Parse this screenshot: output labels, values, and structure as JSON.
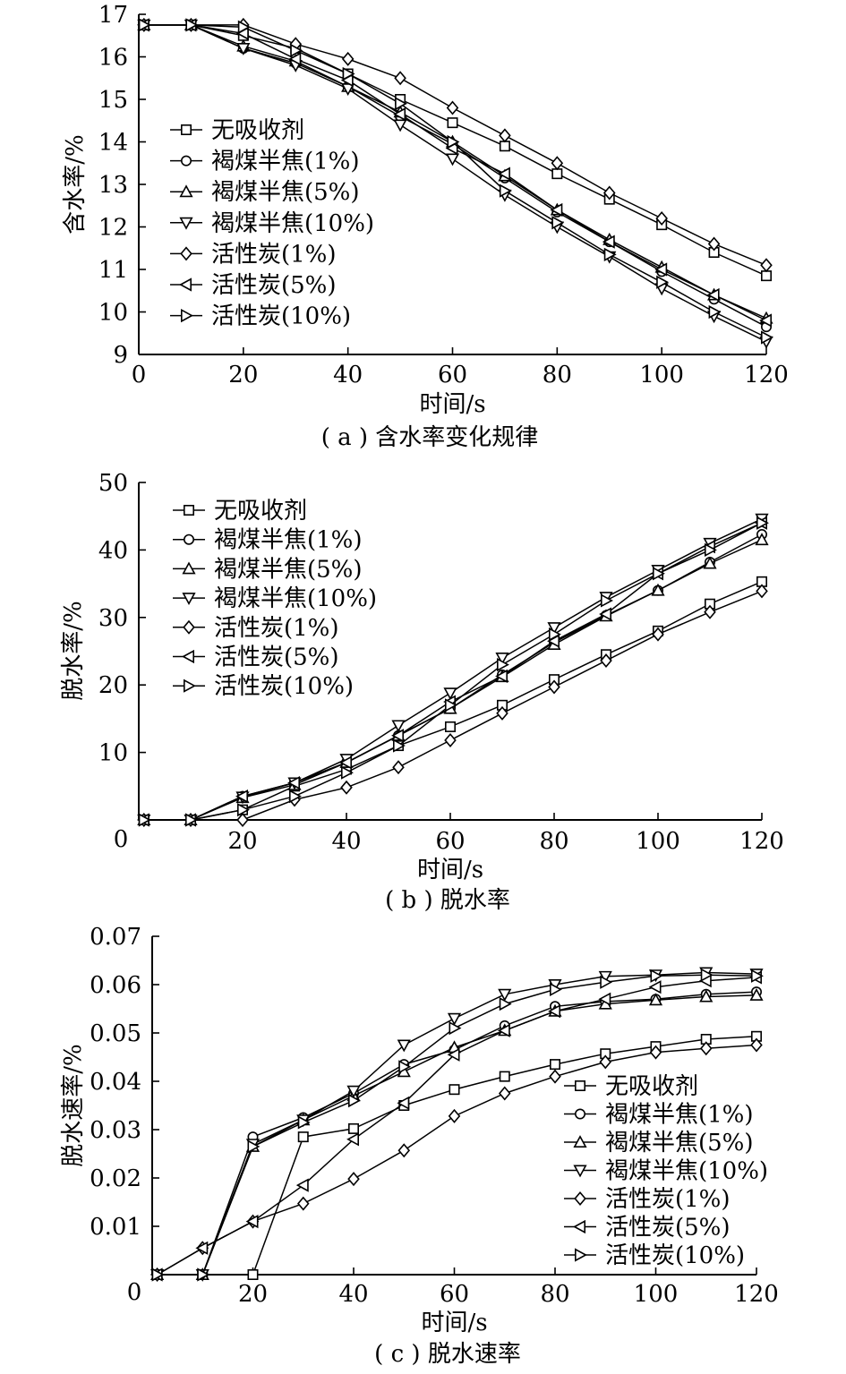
{
  "legend_labels": [
    "无吸收剂",
    "褐煤半焦(1%)",
    "褐煤半焦(5%)",
    "褐煤半焦(10%)",
    "活性炭(1%)",
    "活性炭(5%)",
    "活性炭(10%)"
  ],
  "markers": [
    "square",
    "circle",
    "triangle-up",
    "triangle-down",
    "diamond",
    "triangle-left",
    "triangle-right"
  ],
  "chart_data": [
    {
      "type": "line",
      "caption": "( a ) 含水率变化规律",
      "xlabel": "时间/s",
      "ylabel": "含水率/%",
      "xlim": [
        0,
        120
      ],
      "ylim": [
        9,
        17
      ],
      "xticks": [
        0,
        20,
        40,
        60,
        80,
        100,
        120
      ],
      "yticks": [
        9,
        10,
        11,
        12,
        13,
        14,
        15,
        16,
        17
      ],
      "legend_position": "middle-left",
      "x": [
        1,
        10,
        20,
        30,
        40,
        50,
        60,
        70,
        80,
        90,
        100,
        110,
        120
      ],
      "series": [
        {
          "name": "无吸收剂",
          "values": [
            16.75,
            16.75,
            16.5,
            16.2,
            15.6,
            15.0,
            14.45,
            13.9,
            13.25,
            12.65,
            12.05,
            11.4,
            10.85
          ]
        },
        {
          "name": "褐煤半焦(1%)",
          "values": [
            16.75,
            16.75,
            16.2,
            15.85,
            15.3,
            14.6,
            13.95,
            13.15,
            12.35,
            11.65,
            10.95,
            10.3,
            9.65
          ]
        },
        {
          "name": "褐煤半焦(5%)",
          "values": [
            16.75,
            16.75,
            16.25,
            15.9,
            15.3,
            14.7,
            14.0,
            13.2,
            12.4,
            11.7,
            11.05,
            10.4,
            9.85
          ]
        },
        {
          "name": "褐煤半焦(10%)",
          "values": [
            16.75,
            16.75,
            16.2,
            15.8,
            15.25,
            14.4,
            13.6,
            12.75,
            12.0,
            11.3,
            10.55,
            9.9,
            9.3
          ]
        },
        {
          "name": "活性炭(1%)",
          "values": [
            16.75,
            16.75,
            16.75,
            16.3,
            15.95,
            15.5,
            14.8,
            14.15,
            13.5,
            12.8,
            12.2,
            11.6,
            11.1
          ]
        },
        {
          "name": "活性炭(5%)",
          "values": [
            16.75,
            16.75,
            16.55,
            15.95,
            15.45,
            14.65,
            13.85,
            13.25,
            12.4,
            11.65,
            11.0,
            10.4,
            9.8
          ]
        },
        {
          "name": "活性炭(10%)",
          "values": [
            16.75,
            16.75,
            16.7,
            16.15,
            15.6,
            14.9,
            14.0,
            12.85,
            12.1,
            11.35,
            10.7,
            10.0,
            9.4
          ]
        }
      ]
    },
    {
      "type": "line",
      "caption": "( b ) 脱水率",
      "xlabel": "时间/s",
      "ylabel": "脱水率/%",
      "xlim": [
        0,
        120
      ],
      "ylim": [
        0,
        50
      ],
      "xticks": [
        0,
        20,
        40,
        60,
        80,
        100,
        120
      ],
      "yticks": [
        0,
        10,
        20,
        30,
        40,
        50
      ],
      "legend_position": "top-left",
      "x": [
        1,
        10,
        20,
        30,
        40,
        50,
        60,
        70,
        80,
        90,
        100,
        110,
        120
      ],
      "series": [
        {
          "name": "无吸收剂",
          "values": [
            0,
            0,
            1.5,
            5.0,
            7.5,
            11.0,
            13.8,
            17.0,
            20.8,
            24.5,
            28.0,
            32.0,
            35.3
          ]
        },
        {
          "name": "褐煤半焦(1%)",
          "values": [
            0,
            0,
            3.5,
            5.5,
            8.5,
            12.5,
            16.5,
            21.5,
            26.3,
            30.3,
            34.0,
            38.2,
            42.3
          ]
        },
        {
          "name": "褐煤半焦(5%)",
          "values": [
            0,
            0,
            3.3,
            5.2,
            8.5,
            12.5,
            16.5,
            21.2,
            26.0,
            30.2,
            34.0,
            38.0,
            41.5
          ]
        },
        {
          "name": "褐煤半焦(10%)",
          "values": [
            0,
            0,
            3.4,
            5.5,
            9.0,
            14.0,
            18.8,
            24.0,
            28.5,
            33.0,
            37.0,
            41.0,
            44.6
          ]
        },
        {
          "name": "活性炭(1%)",
          "values": [
            0,
            0,
            0,
            3.0,
            4.8,
            7.8,
            11.8,
            15.8,
            19.7,
            23.6,
            27.5,
            30.8,
            33.9
          ]
        },
        {
          "name": "活性炭(5%)",
          "values": [
            0,
            0,
            3.5,
            5.5,
            8.5,
            12.5,
            17.5,
            21.3,
            26.5,
            30.5,
            36.5,
            40.5,
            44.0
          ]
        },
        {
          "name": "活性炭(10%)",
          "values": [
            0,
            0,
            1.5,
            3.5,
            7.0,
            11.0,
            17.0,
            23.0,
            27.5,
            32.5,
            36.5,
            40.0,
            44.0
          ]
        }
      ]
    },
    {
      "type": "line",
      "caption": "( c ) 脱水速率",
      "xlabel": "时间/s",
      "ylabel": "脱水速率/%",
      "xlim": [
        0,
        120
      ],
      "ylim": [
        0,
        0.07
      ],
      "xticks": [
        0,
        20,
        40,
        60,
        80,
        100,
        120
      ],
      "yticks": [
        0,
        0.01,
        0.02,
        0.03,
        0.04,
        0.05,
        0.06,
        0.07
      ],
      "ytick_labels": [
        "0",
        "0.01",
        "0.02",
        "0.03",
        "0.04",
        "0.05",
        "0.06",
        "0.07"
      ],
      "legend_position": "bottom-right",
      "x": [
        1,
        10,
        20,
        30,
        40,
        50,
        60,
        70,
        80,
        90,
        100,
        110,
        120
      ],
      "series": [
        {
          "name": "无吸收剂",
          "values": [
            0,
            0,
            0,
            0.0285,
            0.0302,
            0.035,
            0.0383,
            0.041,
            0.0435,
            0.0457,
            0.0472,
            0.0487,
            0.0493
          ]
        },
        {
          "name": "褐煤半焦(1%)",
          "values": [
            0,
            0,
            0.0285,
            0.0325,
            0.0375,
            0.0435,
            0.0465,
            0.0515,
            0.0555,
            0.0565,
            0.057,
            0.058,
            0.0585
          ]
        },
        {
          "name": "褐煤半焦(5%)",
          "values": [
            0,
            0,
            0.0265,
            0.032,
            0.037,
            0.042,
            0.047,
            0.0505,
            0.0545,
            0.056,
            0.0568,
            0.0575,
            0.0578
          ]
        },
        {
          "name": "褐煤半焦(10%)",
          "values": [
            0,
            0,
            0.027,
            0.032,
            0.038,
            0.0475,
            0.053,
            0.058,
            0.06,
            0.0617,
            0.062,
            0.0625,
            0.0622
          ]
        },
        {
          "name": "活性炭(1%)",
          "values": [
            0,
            0.0055,
            0.011,
            0.0147,
            0.0198,
            0.0257,
            0.0328,
            0.0375,
            0.041,
            0.044,
            0.046,
            0.0468,
            0.0475
          ]
        },
        {
          "name": "活性炭(5%)",
          "values": [
            0,
            0.0055,
            0.011,
            0.0185,
            0.028,
            0.0355,
            0.0455,
            0.0505,
            0.0545,
            0.057,
            0.0595,
            0.0608,
            0.0615
          ]
        },
        {
          "name": "活性炭(10%)",
          "values": [
            0,
            0,
            0.0265,
            0.0315,
            0.036,
            0.043,
            0.051,
            0.056,
            0.059,
            0.0605,
            0.0618,
            0.062,
            0.0618
          ]
        }
      ]
    }
  ]
}
